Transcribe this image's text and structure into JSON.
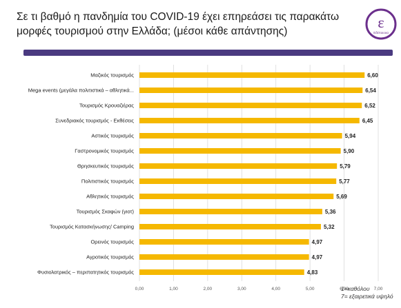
{
  "header": {
    "title": "Σε τι βαθμό η πανδημία του COVID-19 έχει επηρεάσει τις παρακάτω μορφές τουρισμού στην Ελλάδα; (μέσοι κάθε απάντησης)",
    "logo_letter": "ε",
    "logo_text": "Εδέποιουα"
  },
  "colors": {
    "bar": "#f5b800",
    "rule": "#4a3a80",
    "logo": "#6b2f8c",
    "grid": "#d9d9d9"
  },
  "chart_data": {
    "type": "bar",
    "orientation": "horizontal",
    "categories": [
      "Μαζικός τουρισμός",
      "Mega events (μεγάλα πολιτιστικά – αθλητικά...",
      "Τουρισμός Κρουαζιέρας",
      "Συνεδριακός τουρισμός - Εκθέσεις",
      "Αστικός τουρισμός",
      "Γαστρονομικός τουρισμός",
      "Θρησκευτικός τουρισμός",
      "Πολιτιστικός τουρισμός",
      "Αθλητικός τουρισμός",
      "Τουρισμός Σκαφών (γιοτ)",
      "Τουρισμός Κατασκήνωσης/ Camping",
      "Ορεινός τουρισμός",
      "Αγροτικός τουρισμός",
      "Φυσιολατρικός – περιπατητικός τουρισμός"
    ],
    "values": [
      6.6,
      6.54,
      6.52,
      6.45,
      5.94,
      5.9,
      5.79,
      5.77,
      5.69,
      5.36,
      5.32,
      4.97,
      4.97,
      4.83
    ],
    "value_labels": [
      "6,60",
      "6,54",
      "6,52",
      "6,45",
      "5,94",
      "5,90",
      "5,79",
      "5,77",
      "5,69",
      "5,36",
      "5,32",
      "4,97",
      "4,97",
      "4,83"
    ],
    "xlim": [
      0,
      7
    ],
    "x_ticks": [
      0,
      1,
      2,
      3,
      4,
      5,
      6,
      7
    ],
    "x_tick_labels": [
      "0,00",
      "1,00",
      "2,00",
      "3,00",
      "4,00",
      "5,00",
      "6,00",
      "7,00"
    ],
    "grid": "vertical",
    "note": [
      "1=καθόλου",
      "7= εξαιρετικά υψηλό"
    ]
  }
}
